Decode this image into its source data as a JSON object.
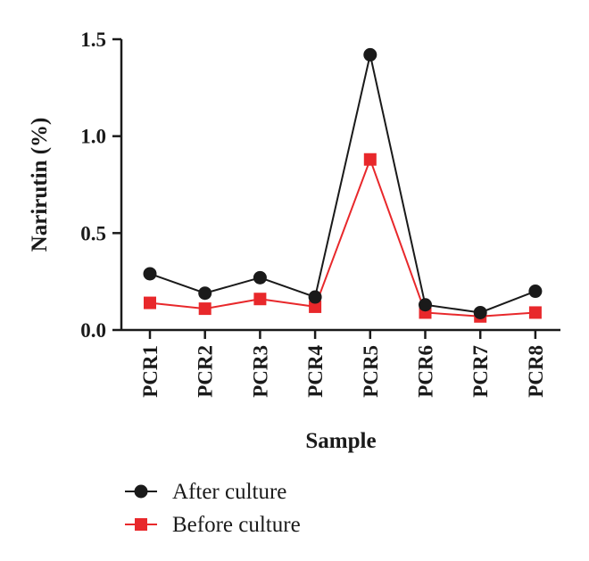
{
  "chart_data": {
    "type": "line",
    "categories": [
      "PCR1",
      "PCR2",
      "PCR3",
      "PCR4",
      "PCR5",
      "PCR6",
      "PCR7",
      "PCR8"
    ],
    "series": [
      {
        "name": "After culture",
        "color": "#1a1a1a",
        "marker": "circle",
        "values": [
          0.29,
          0.19,
          0.27,
          0.17,
          1.42,
          0.13,
          0.09,
          0.2
        ]
      },
      {
        "name": "Before culture",
        "color": "#e8282b",
        "marker": "square",
        "values": [
          0.14,
          0.11,
          0.16,
          0.12,
          0.88,
          0.09,
          0.07,
          0.09
        ]
      }
    ],
    "ylabel": "Narirutin (%)",
    "xlabel": "Sample",
    "ylim": [
      0,
      1.5
    ],
    "yticks": [
      "0.0",
      "0.5",
      "1.0",
      "1.5"
    ],
    "grid": false,
    "legend_position": "bottom-left"
  }
}
